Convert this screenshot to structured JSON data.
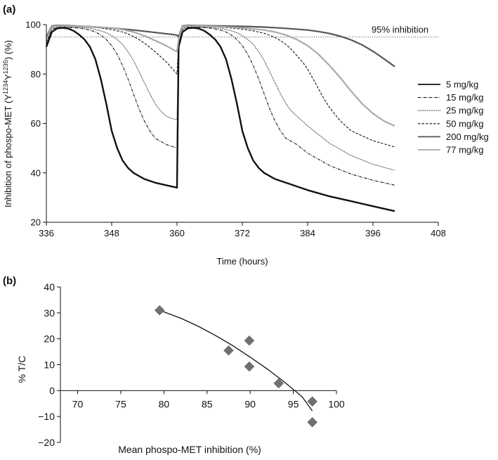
{
  "chart_data": [
    {
      "panel_label": "(a)",
      "type": "line",
      "xlabel": "Time (hours)",
      "ylabel": "Inhibition of phospo-MET (Y1234Y1235) (%)",
      "xlim": [
        336,
        408
      ],
      "ylim": [
        20,
        100
      ],
      "xticks": [
        "336",
        "348",
        "360",
        "372",
        "384",
        "396",
        "408"
      ],
      "yticks": [
        "20",
        "40",
        "60",
        "80",
        "100"
      ],
      "reference_line": {
        "y": 95,
        "label": "95% inhibition"
      },
      "legend_position": "right",
      "series": [
        {
          "name": "5 mg/kg",
          "style": "solid-thick",
          "color": "#111111",
          "x": [
            336,
            337,
            338,
            339,
            340,
            341,
            342,
            343,
            344,
            345,
            346,
            347,
            348,
            349,
            350,
            351,
            352,
            354,
            356,
            358,
            360,
            360.3,
            361,
            362,
            363,
            364,
            365,
            366,
            367,
            368,
            369,
            370,
            371,
            372,
            373,
            374,
            375,
            376,
            378,
            380,
            384,
            388,
            392,
            396,
            400
          ],
          "y": [
            91,
            97,
            98.5,
            98.7,
            98.4,
            97.5,
            96,
            94,
            91,
            86,
            78,
            68,
            57,
            50,
            45,
            42,
            40,
            37.5,
            36,
            35,
            34,
            91,
            97,
            98.5,
            98.7,
            98.4,
            97.5,
            96,
            94,
            91,
            86,
            78,
            68,
            57,
            50,
            45,
            42,
            40,
            37.5,
            36,
            33,
            30.5,
            28.5,
            26.5,
            24.5
          ]
        },
        {
          "name": "15 mg/kg",
          "style": "dash-dot",
          "color": "#111111",
          "x": [
            336,
            337,
            338,
            340,
            342,
            344,
            345,
            346,
            347,
            348,
            349,
            350,
            351,
            352,
            353,
            354,
            355,
            356,
            358,
            360,
            360.3,
            361,
            362,
            364,
            366,
            368,
            369,
            370,
            371,
            372,
            373,
            374,
            375,
            376,
            377,
            378,
            379,
            380,
            382,
            384,
            388,
            392,
            396,
            400
          ],
          "y": [
            92,
            98,
            98.8,
            98.9,
            98.6,
            97.8,
            97,
            95.8,
            94,
            91.5,
            88,
            83.5,
            78,
            72,
            66,
            61,
            57,
            54,
            51.5,
            50,
            92,
            98,
            98.8,
            98.9,
            98.6,
            97.8,
            97,
            95.8,
            94,
            91.5,
            88,
            83.5,
            78,
            72,
            66,
            61,
            57,
            54,
            51.5,
            48,
            43,
            39.5,
            37,
            35
          ]
        },
        {
          "name": "25 mg/kg",
          "style": "dotted",
          "color": "#111111",
          "x": [
            336,
            337,
            338,
            340,
            342,
            344,
            346,
            347,
            348,
            349,
            350,
            351,
            352,
            353,
            354,
            355,
            356,
            357,
            358,
            359,
            360,
            360.3,
            361,
            362,
            364,
            366,
            368,
            370,
            371,
            372,
            373,
            374,
            375,
            376,
            377,
            378,
            379,
            380,
            381,
            382,
            384,
            388,
            392,
            396,
            400
          ],
          "y": [
            92,
            98.5,
            99,
            99,
            98.9,
            98.5,
            97.5,
            96.7,
            95.6,
            94,
            92,
            89,
            85.5,
            81,
            76.5,
            72,
            68,
            65,
            63,
            62,
            61.5,
            92,
            98.5,
            99,
            99,
            98.9,
            98.5,
            97.5,
            96.7,
            95.6,
            94,
            92,
            89,
            85.5,
            81,
            76.5,
            72,
            68,
            65,
            63,
            59,
            52,
            47,
            43.5,
            41
          ]
        },
        {
          "name": "50 mg/kg",
          "style": "dashed",
          "color": "#111111",
          "x": [
            336,
            337,
            338,
            340,
            342,
            344,
            346,
            348,
            349,
            350,
            351,
            352,
            353,
            354,
            355,
            356,
            357,
            358,
            359,
            360,
            360.3,
            361,
            362,
            364,
            366,
            368,
            370,
            372,
            374,
            376,
            377,
            378,
            379,
            380,
            381,
            382,
            383,
            384,
            385,
            386,
            387,
            388,
            390,
            392,
            396,
            400
          ],
          "y": [
            93,
            99,
            99.3,
            99.3,
            99.2,
            99,
            98.6,
            98,
            97.5,
            97,
            96.2,
            95.2,
            94,
            92.5,
            90.8,
            89,
            87,
            85,
            82.5,
            80,
            93,
            99,
            99.3,
            99.3,
            99.2,
            99,
            98.6,
            98.2,
            97.5,
            96.5,
            95.7,
            94.8,
            93.5,
            92,
            90,
            87.5,
            85,
            82,
            78,
            74,
            70,
            66.5,
            61,
            57,
            53,
            50.5
          ]
        },
        {
          "name": "200 mg/kg",
          "style": "solid",
          "color": "#555555",
          "x": [
            336,
            337,
            338,
            340,
            344,
            348,
            352,
            356,
            360,
            360.3,
            361,
            362,
            364,
            368,
            372,
            376,
            380,
            384,
            386,
            388,
            390,
            392,
            394,
            396,
            398,
            400
          ],
          "y": [
            95,
            99.5,
            99.7,
            99.6,
            99.2,
            98.6,
            97.8,
            96.8,
            95.8,
            95,
            99.5,
            99.7,
            99.6,
            99.5,
            99.3,
            99,
            98.5,
            97.8,
            97.2,
            96.4,
            95.3,
            93.8,
            91.8,
            89.2,
            86.2,
            83
          ]
        },
        {
          "name": "77 mg/kg",
          "style": "solid",
          "color": "#aaaaaa",
          "x": [
            336,
            337,
            338,
            340,
            344,
            348,
            350,
            352,
            354,
            356,
            358,
            360,
            360.3,
            361,
            362,
            364,
            368,
            372,
            376,
            378,
            380,
            382,
            384,
            386,
            388,
            390,
            392,
            394,
            396,
            398,
            400
          ],
          "y": [
            94,
            99.3,
            99.5,
            99.5,
            99.2,
            98.6,
            98,
            97,
            95.5,
            93.5,
            91.5,
            89,
            94,
            99.3,
            99.5,
            99.5,
            99.2,
            98.7,
            97.8,
            97,
            95.8,
            94,
            91.5,
            88,
            83.5,
            78.5,
            73,
            68,
            64,
            61,
            59
          ]
        }
      ]
    },
    {
      "panel_label": "(b)",
      "type": "scatter",
      "xlabel": "Mean phospo-MET inhibition (%)",
      "ylabel": "% T/C",
      "xlim": [
        68,
        100
      ],
      "ylim": [
        -20,
        40
      ],
      "xticks": [
        "70",
        "75",
        "80",
        "85",
        "90",
        "95",
        "100"
      ],
      "yticks": [
        "−20",
        "−10",
        "0",
        "10",
        "20",
        "30",
        "40"
      ],
      "marker": "diamond",
      "marker_color": "#707070",
      "points": [
        {
          "x": 79.5,
          "y": 31
        },
        {
          "x": 87.5,
          "y": 15.5
        },
        {
          "x": 89.9,
          "y": 19.3
        },
        {
          "x": 89.9,
          "y": 9.3
        },
        {
          "x": 93.3,
          "y": 2.8
        },
        {
          "x": 97.2,
          "y": -4.2
        },
        {
          "x": 97.2,
          "y": -12.2
        }
      ],
      "trendline": {
        "x": [
          79.5,
          82,
          84,
          86,
          88,
          90,
          92,
          94,
          96,
          97.2
        ],
        "y": [
          31,
          27.9,
          24.8,
          21.2,
          17.3,
          12.9,
          8.3,
          3.2,
          -2.3,
          -7.8
        ]
      }
    }
  ]
}
